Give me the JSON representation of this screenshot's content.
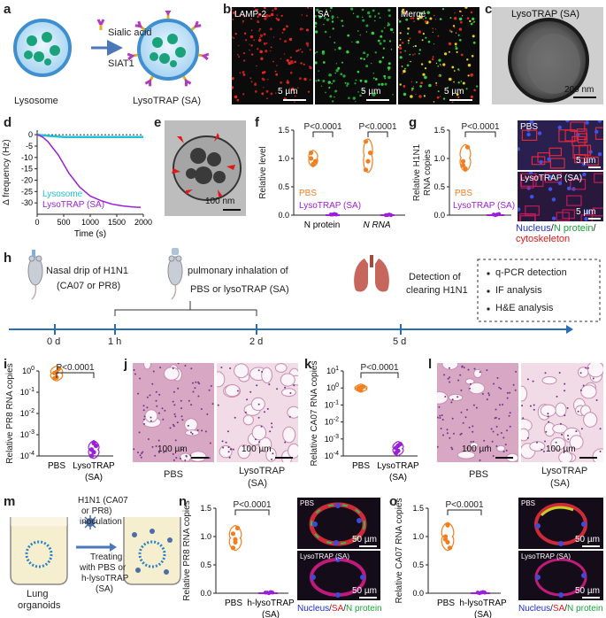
{
  "panels": {
    "a": {
      "letter": "a",
      "lysosome": "Lysosome",
      "reagent1": "Sialic acid",
      "reagent2": "SIAT1",
      "product": "LysoTRAP (SA)"
    },
    "b": {
      "letter": "b",
      "ch1": "LAMP-2",
      "ch2": "SA",
      "ch3": "Merge",
      "scale1": "5 µm",
      "scale2": "5 µm",
      "scale3": "5 µm"
    },
    "c": {
      "letter": "c",
      "title": "LysoTRAP (SA)",
      "scale": "200 nm"
    },
    "d": {
      "letter": "d",
      "ylabel": "Δ frequency (Hz)",
      "xlabel": "Time (s)",
      "legend1": "Lysosome",
      "legend2": "LysoTRAP (SA)"
    },
    "e": {
      "letter": "e",
      "scale": "100 nm"
    },
    "f": {
      "letter": "f",
      "ylabel": "Relative level",
      "legend1": "PBS",
      "legend2": "LysoTRAP (SA)",
      "pval1": "P<0.0001",
      "pval2": "P<0.0001",
      "cat1": "N protein",
      "cat2": "N RNA"
    },
    "g": {
      "letter": "g",
      "ylabel1": "Relative H1N1",
      "ylabel2": "RNA copies",
      "legend1": "PBS",
      "legend2": "LysoTRAP (SA)",
      "pval": "P<0.0001",
      "img1": "PBS",
      "img2": "LysoTRAP (SA)",
      "scale1": "5 µm",
      "scale2": "5 µm",
      "cap_a": "Nucleus",
      "cap_b": "N protein",
      "cap_c": "cytoskeleton"
    },
    "h": {
      "letter": "h",
      "step1a": "Nasal drip of H1N1",
      "step1b": "(CA07 or PR8)",
      "step2a": "pulmonary inhalation of",
      "step2b": "PBS or lysoTRAP (SA)",
      "step3a": "Detection of",
      "step3b": "clearing H1N1",
      "t0": "0 d",
      "t1": "1 h",
      "t2": "2 d",
      "t3": "5 d",
      "box1": "q-PCR detection",
      "box2": "IF analysis",
      "box3": "H&E analysis"
    },
    "i": {
      "letter": "i",
      "ylabel": "Relative PR8 RNA copies",
      "pval": "P<0.0001",
      "cat1": "PBS",
      "cat2a": "LysoTRAP",
      "cat2b": "(SA)"
    },
    "j": {
      "letter": "j",
      "scale1": "100 µm",
      "scale2": "100 µm",
      "cap1": "PBS",
      "cap2a": "LysoTRAP",
      "cap2b": "(SA)"
    },
    "k": {
      "letter": "k",
      "ylabel": "Relative CA07 RNA copies",
      "pval": "P<0.0001",
      "cat1": "PBS",
      "cat2a": "LysoTRAP",
      "cat2b": "(SA)"
    },
    "l": {
      "letter": "l",
      "scale1": "100 µm",
      "scale2": "100 µm",
      "cap1": "PBS",
      "cap2a": "LysoTRAP",
      "cap2b": "(SA)"
    },
    "m": {
      "letter": "m",
      "inoc1": "H1N1 (CA07",
      "inoc2": "or PR8)",
      "inoc3": "inoculation",
      "treat1": "Treating",
      "treat2": "with PBS or",
      "treat3": "h-lysoTRAP",
      "treat4": "(SA)",
      "org1": "Lung",
      "org2": "organoids"
    },
    "n": {
      "letter": "n",
      "ylabel": "Relative PR8 RNA copies",
      "pval": "P<0.0001",
      "cat1": "PBS",
      "cat2a": "h-lysoTRAP",
      "cat2b": "(SA)",
      "img1": "PBS",
      "img2": "LysoTRAP (SA)",
      "scale1": "50 µm",
      "scale2": "50 µm",
      "cap_a": "Nucleus",
      "cap_b": "SA",
      "cap_c": "N protein"
    },
    "o": {
      "letter": "o",
      "ylabel": "Relative CA07 RNA copies",
      "pval": "P<0.0001",
      "cat1": "PBS",
      "cat2a": "h-lysoTRAP",
      "cat2b": "(SA)",
      "img1": "PBS",
      "img2": "LysoTRAP (SA)",
      "scale1": "50 µm",
      "scale2": "50 µm",
      "cap_a": "Nucleus",
      "cap_b": "SA",
      "cap_c": "N protein"
    }
  },
  "chart_data": [
    {
      "id": "d",
      "type": "line",
      "xlabel": "Time (s)",
      "ylabel": "Δ frequency (Hz)",
      "xlim": [
        0,
        2000
      ],
      "ylim": [
        -35,
        2
      ],
      "xticks": [
        0,
        500,
        1000,
        1500,
        2000
      ],
      "yticks": [
        0,
        -5,
        -10,
        -15,
        -20,
        -25,
        -30
      ],
      "series": [
        {
          "name": "Lysosome",
          "color": "#22c1d6",
          "x": [
            0,
            200,
            500,
            1000,
            1500,
            2000
          ],
          "y": [
            0,
            -0.5,
            -1,
            -1,
            -1,
            -1
          ]
        },
        {
          "name": "LysoTRAP (SA)",
          "color": "#9b1fd6",
          "x": [
            0,
            100,
            200,
            300,
            400,
            500,
            600,
            700,
            800,
            900,
            1000,
            1200,
            1400,
            1600,
            1800,
            1950
          ],
          "y": [
            0,
            -1,
            -3,
            -6,
            -9,
            -13,
            -17,
            -20,
            -23,
            -25,
            -27,
            -29,
            -30.5,
            -31.3,
            -31.8,
            -32
          ]
        }
      ]
    },
    {
      "id": "f",
      "type": "scatter",
      "ylabel": "Relative level",
      "ylim": [
        0,
        1.5
      ],
      "yticks": [
        0,
        0.5,
        1.0,
        1.5
      ],
      "categories": [
        "N protein",
        "N RNA"
      ],
      "series": [
        {
          "name": "PBS",
          "color": "#f07f1f",
          "values": [
            [
              1.0,
              0.9,
              0.95,
              1.1
            ],
            [
              1.3,
              0.95,
              1.1,
              0.8
            ]
          ]
        },
        {
          "name": "LysoTRAP (SA)",
          "color": "#9b1fd6",
          "values": [
            [
              0.01,
              0.01,
              0.02,
              0.01
            ],
            [
              0.0,
              0.0,
              0.01,
              0.0
            ]
          ]
        }
      ]
    },
    {
      "id": "g",
      "type": "scatter",
      "ylabel": "Relative H1N1 RNA copies",
      "ylim": [
        0,
        1.5
      ],
      "yticks": [
        0,
        0.5,
        1.0,
        1.5
      ],
      "series": [
        {
          "name": "PBS",
          "color": "#f07f1f",
          "values": [
            0.95,
            0.82,
            1.2,
            0.88
          ]
        },
        {
          "name": "LysoTRAP (SA)",
          "color": "#9b1fd6",
          "values": [
            0.01,
            0.0,
            0.01,
            0.02
          ]
        }
      ]
    },
    {
      "id": "i",
      "type": "scatter",
      "ylabel": "Relative PR8 RNA copies",
      "scale": "log",
      "yticks": [
        "10^0",
        "10^-1",
        "10^-2",
        "10^-3",
        "10^-4"
      ],
      "categories": [
        "PBS",
        "LysoTRAP (SA)"
      ],
      "series": [
        {
          "name": "PBS",
          "color": "#f07f1f",
          "values": [
            0.8,
            0.5,
            1.3,
            0.45,
            0.9
          ]
        },
        {
          "name": "LysoTRAP (SA)",
          "color": "#9b1fd6",
          "values": [
            0.0002,
            0.00015,
            0.0003,
            0.0001,
            0.0004
          ]
        }
      ]
    },
    {
      "id": "k",
      "type": "scatter",
      "ylabel": "Relative CA07 RNA copies",
      "scale": "log",
      "yticks": [
        "10^1",
        "10^0",
        "10^-1",
        "10^-2",
        "10^-3",
        "10^-4"
      ],
      "categories": [
        "PBS",
        "LysoTRAP (SA)"
      ],
      "series": [
        {
          "name": "PBS",
          "color": "#f07f1f",
          "values": [
            1.0,
            0.8,
            1.2,
            0.9,
            1.1
          ]
        },
        {
          "name": "LysoTRAP (SA)",
          "color": "#9b1fd6",
          "values": [
            0.0003,
            0.0002,
            0.0005,
            0.00015,
            0.0004
          ]
        }
      ]
    },
    {
      "id": "n",
      "type": "scatter",
      "ylabel": "Relative PR8 RNA copies",
      "ylim": [
        0,
        1.5
      ],
      "yticks": [
        0,
        0.5,
        1.0,
        1.5
      ],
      "categories": [
        "PBS",
        "h-lysoTRAP (SA)"
      ],
      "series": [
        {
          "name": "PBS",
          "color": "#f07f1f",
          "values": [
            1.05,
            0.95,
            1.15,
            0.8,
            0.9
          ]
        },
        {
          "name": "h-lysoTRAP (SA)",
          "color": "#9b1fd6",
          "values": [
            0.01,
            0.01,
            0.0,
            0.02,
            0.01
          ]
        }
      ]
    },
    {
      "id": "o",
      "type": "scatter",
      "ylabel": "Relative CA07 RNA copies",
      "ylim": [
        0,
        1.5
      ],
      "yticks": [
        0,
        0.5,
        1.0,
        1.5
      ],
      "categories": [
        "PBS",
        "h-lysoTRAP (SA)"
      ],
      "series": [
        {
          "name": "PBS",
          "color": "#f07f1f",
          "values": [
            0.95,
            1.2,
            0.8,
            1.0,
            0.9
          ]
        },
        {
          "name": "h-lysoTRAP (SA)",
          "color": "#9b1fd6",
          "values": [
            0.01,
            0.0,
            0.01,
            0.02,
            0.01
          ]
        }
      ]
    }
  ]
}
